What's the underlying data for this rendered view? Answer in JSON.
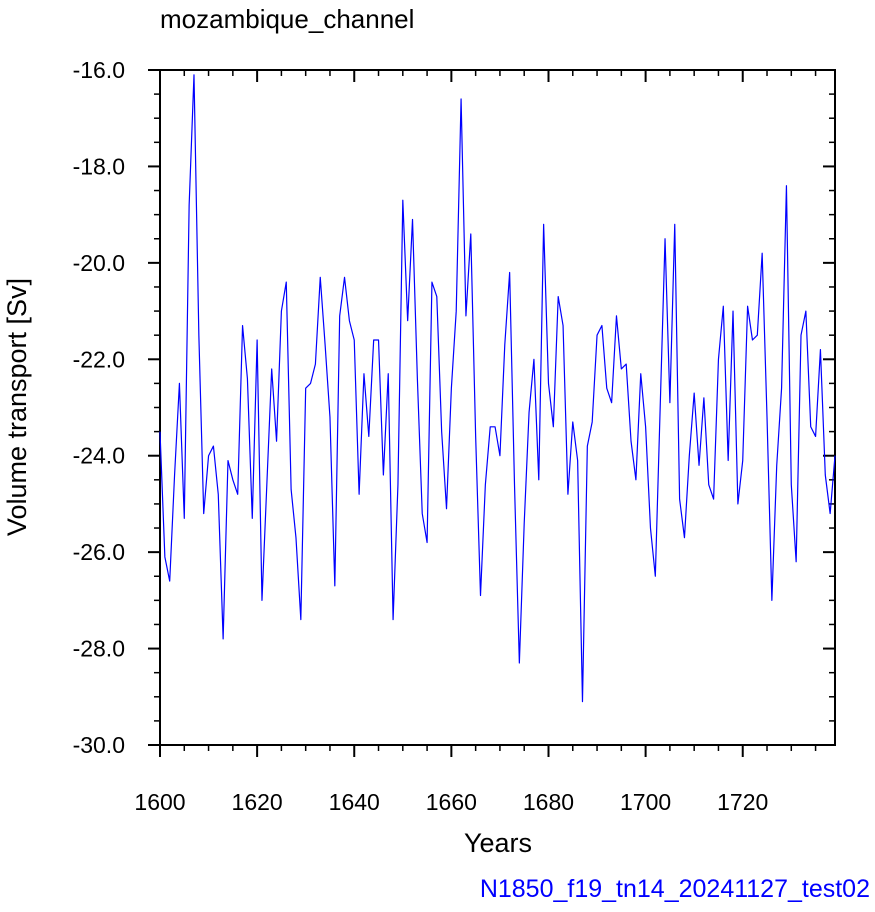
{
  "chart_data": {
    "type": "line",
    "title": "mozambique_channel",
    "xlabel": "Years",
    "ylabel": "Volume transport [Sv]",
    "footer": "N1850_f19_tn14_20241127_test02",
    "xlim": [
      1600,
      1739
    ],
    "ylim": [
      -30,
      -16
    ],
    "x_ticks": [
      1600,
      1620,
      1640,
      1660,
      1680,
      1700,
      1720
    ],
    "x_tick_labels": [
      "1600",
      "1620",
      "1640",
      "1660",
      "1680",
      "1700",
      "1720"
    ],
    "y_ticks": [
      -30,
      -28,
      -26,
      -24,
      -22,
      -20,
      -18,
      -16
    ],
    "y_tick_labels": [
      "-30.0",
      "-28.0",
      "-26.0",
      "-24.0",
      "-22.0",
      "-20.0",
      "-18.0",
      "-16.0"
    ],
    "grid": false,
    "colors": {
      "line": "#0000ff",
      "footer": "#0000ff",
      "axes": "#000000"
    },
    "series": [
      {
        "x_start": 1600,
        "x_step": 1,
        "values": [
          -23.5,
          -26.1,
          -26.6,
          -24.4,
          -22.5,
          -25.3,
          -18.8,
          -16.1,
          -21.5,
          -25.2,
          -24.0,
          -23.8,
          -24.8,
          -27.8,
          -24.1,
          -24.5,
          -24.8,
          -21.3,
          -22.4,
          -25.3,
          -21.6,
          -27.0,
          -24.6,
          -22.2,
          -23.7,
          -21.0,
          -20.4,
          -24.7,
          -25.7,
          -27.4,
          -22.6,
          -22.5,
          -22.1,
          -20.3,
          -21.7,
          -23.2,
          -26.7,
          -21.1,
          -20.3,
          -21.2,
          -21.6,
          -24.8,
          -22.3,
          -23.6,
          -21.6,
          -21.6,
          -24.4,
          -22.3,
          -27.4,
          -24.6,
          -18.7,
          -21.2,
          -19.1,
          -22.4,
          -25.2,
          -25.8,
          -20.4,
          -20.7,
          -23.5,
          -25.1,
          -22.6,
          -21.0,
          -16.6,
          -21.1,
          -19.4,
          -23.6,
          -26.9,
          -24.6,
          -23.4,
          -23.4,
          -24.0,
          -21.7,
          -20.2,
          -24.6,
          -28.3,
          -25.4,
          -23.1,
          -22.0,
          -24.5,
          -19.2,
          -22.5,
          -23.4,
          -20.7,
          -21.3,
          -24.8,
          -23.3,
          -24.1,
          -29.1,
          -23.8,
          -23.3,
          -21.5,
          -21.3,
          -22.6,
          -22.9,
          -21.1,
          -22.2,
          -22.1,
          -23.7,
          -24.5,
          -22.3,
          -23.4,
          -25.5,
          -26.5,
          -23.0,
          -19.5,
          -22.9,
          -19.2,
          -24.9,
          -25.7,
          -24.0,
          -22.7,
          -24.2,
          -22.8,
          -24.6,
          -24.9,
          -22.0,
          -20.9,
          -24.1,
          -21.0,
          -25.0,
          -24.1,
          -20.9,
          -21.6,
          -21.5,
          -19.8,
          -23.2,
          -27.0,
          -24.2,
          -22.6,
          -18.4,
          -24.6,
          -26.2,
          -21.5,
          -21.0,
          -23.4,
          -23.6,
          -21.8,
          -24.4,
          -25.2,
          -24.0
        ]
      }
    ]
  }
}
